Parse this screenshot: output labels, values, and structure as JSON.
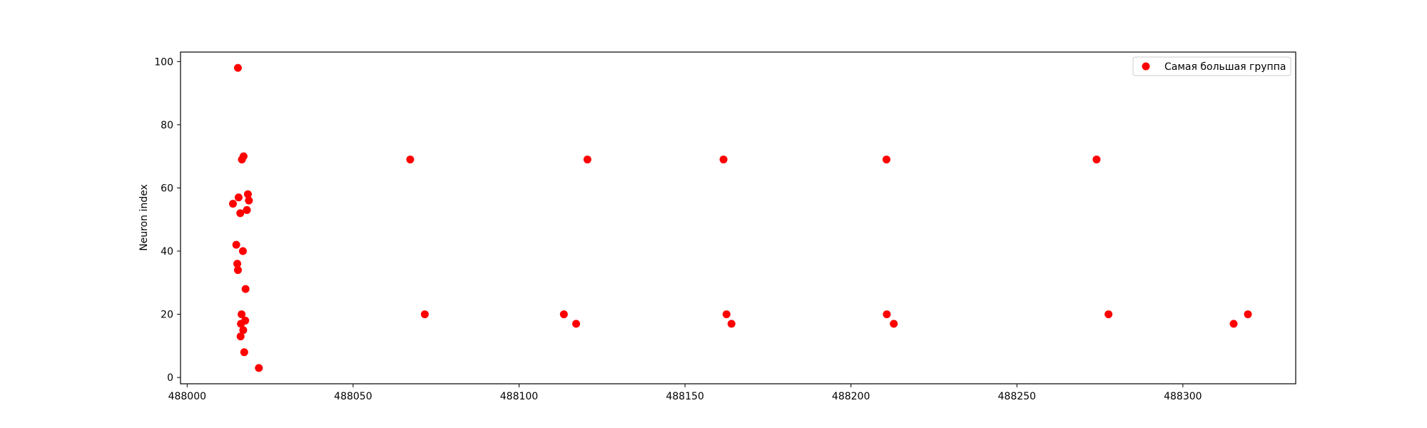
{
  "chart_data": {
    "type": "scatter",
    "title": "",
    "xlabel": "",
    "ylabel": "Neuron index",
    "xlim": [
      487998,
      488334
    ],
    "ylim": [
      -2,
      103
    ],
    "xticks": [
      488000,
      488050,
      488100,
      488150,
      488200,
      488250,
      488300
    ],
    "xtick_labels": [
      "488000",
      "488050",
      "488100",
      "488150",
      "488200",
      "488250",
      "488300"
    ],
    "yticks": [
      0,
      20,
      40,
      60,
      80,
      100
    ],
    "ytick_labels": [
      "0",
      "20",
      "40",
      "60",
      "80",
      "100"
    ],
    "grid": false,
    "legend_position": "upper right",
    "series": [
      {
        "name": "Самая большая группа",
        "color": "#ff0000",
        "marker": "circle",
        "points": [
          {
            "x": 488015.3,
            "y": 98
          },
          {
            "x": 488017.0,
            "y": 70
          },
          {
            "x": 488016.5,
            "y": 69
          },
          {
            "x": 488018.3,
            "y": 58
          },
          {
            "x": 488015.5,
            "y": 57
          },
          {
            "x": 488018.6,
            "y": 56
          },
          {
            "x": 488013.8,
            "y": 55
          },
          {
            "x": 488018.0,
            "y": 53
          },
          {
            "x": 488016.0,
            "y": 52
          },
          {
            "x": 488014.8,
            "y": 42
          },
          {
            "x": 488016.8,
            "y": 40
          },
          {
            "x": 488015.1,
            "y": 36
          },
          {
            "x": 488015.3,
            "y": 34
          },
          {
            "x": 488017.6,
            "y": 28
          },
          {
            "x": 488016.4,
            "y": 20
          },
          {
            "x": 488017.5,
            "y": 18
          },
          {
            "x": 488016.2,
            "y": 17
          },
          {
            "x": 488016.9,
            "y": 15
          },
          {
            "x": 488016.1,
            "y": 13
          },
          {
            "x": 488017.2,
            "y": 8
          },
          {
            "x": 488021.6,
            "y": 3
          },
          {
            "x": 488067.2,
            "y": 69
          },
          {
            "x": 488071.6,
            "y": 20
          },
          {
            "x": 488113.5,
            "y": 20
          },
          {
            "x": 488117.2,
            "y": 17
          },
          {
            "x": 488120.6,
            "y": 69
          },
          {
            "x": 488161.6,
            "y": 69
          },
          {
            "x": 488162.5,
            "y": 20
          },
          {
            "x": 488164.0,
            "y": 17
          },
          {
            "x": 488210.7,
            "y": 69
          },
          {
            "x": 488210.8,
            "y": 20
          },
          {
            "x": 488212.9,
            "y": 17
          },
          {
            "x": 488274.0,
            "y": 69
          },
          {
            "x": 488277.6,
            "y": 20
          },
          {
            "x": 488315.3,
            "y": 17
          },
          {
            "x": 488319.6,
            "y": 20
          }
        ]
      }
    ]
  }
}
